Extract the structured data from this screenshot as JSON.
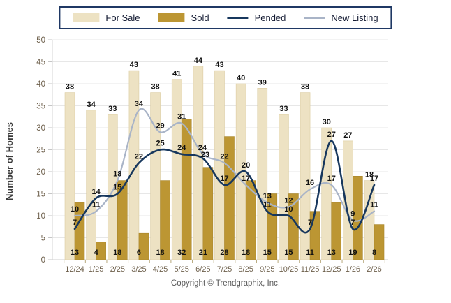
{
  "legend": {
    "items": [
      {
        "label": "For Sale",
        "type": "bar",
        "color": "#EDE2C3"
      },
      {
        "label": "Sold",
        "type": "bar",
        "color": "#BC9633"
      },
      {
        "label": "Pended",
        "type": "line",
        "color": "#17375D"
      },
      {
        "label": "New Listing",
        "type": "line",
        "color": "#A9B4C7"
      }
    ]
  },
  "chart_data": {
    "type": "bar+line combo",
    "title": "",
    "xlabel": "",
    "ylabel": "Number of Homes",
    "ylim": [
      0,
      50
    ],
    "yticks": [
      0,
      5,
      10,
      15,
      20,
      25,
      30,
      35,
      40,
      45,
      50
    ],
    "grid": true,
    "legend_position": "top",
    "categories": [
      "12/24",
      "1/25",
      "2/25",
      "3/25",
      "4/25",
      "5/25",
      "6/25",
      "7/25",
      "8/25",
      "9/25",
      "10/25",
      "11/25",
      "12/25",
      "1/26",
      "2/26"
    ],
    "series": [
      {
        "name": "For Sale",
        "type": "bar",
        "label_position": "above",
        "color": "#EDE2C3",
        "edge": "#DBCCA2",
        "values": [
          38,
          34,
          33,
          43,
          38,
          41,
          44,
          43,
          40,
          39,
          33,
          38,
          30,
          27,
          18
        ]
      },
      {
        "name": "Sold",
        "type": "bar",
        "label_position": "inside-bottom",
        "color": "#BC9633",
        "edge": "#A8852B",
        "values": [
          13,
          4,
          18,
          6,
          18,
          32,
          21,
          28,
          18,
          15,
          15,
          11,
          13,
          19,
          8
        ]
      },
      {
        "name": "Pended",
        "type": "line",
        "label_position": "near-point",
        "color": "#17375D",
        "values": [
          7,
          14,
          15,
          22,
          25,
          24,
          23,
          17,
          20,
          11,
          10,
          7,
          27,
          7,
          17
        ]
      },
      {
        "name": "New Listing",
        "type": "line",
        "label_position": "near-point",
        "color": "#A9B4C7",
        "values": [
          10,
          11,
          18,
          34,
          29,
          31,
          24,
          22,
          17,
          13,
          12,
          16,
          17,
          9,
          11
        ]
      }
    ],
    "axis_text_color": "#6d5f4b",
    "value_label_color": "#111111",
    "grid_color": "#E7E7E7"
  },
  "footer": {
    "copyright": "Copyright © Trendgraphix, Inc."
  }
}
